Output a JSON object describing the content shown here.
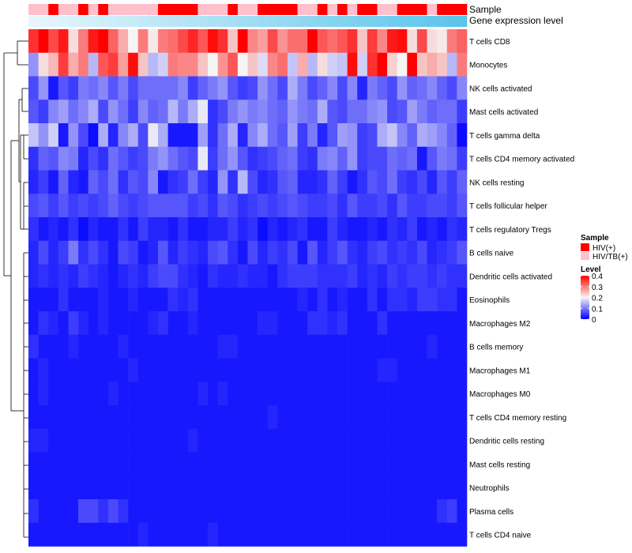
{
  "chart_data": {
    "type": "heatmap",
    "title": "",
    "annotation_tracks": [
      {
        "name": "Sample",
        "label": "Sample"
      },
      {
        "name": "Gene expression level",
        "label": "Gene expression level"
      }
    ],
    "rows": [
      "T cells CD8",
      "Monocytes",
      "NK cells activated",
      "Mast cells activated",
      "T cells gamma delta",
      "T cells CD4 memory activated",
      "NK cells resting",
      "T cells follicular helper",
      "T cells regulatory  Tregs",
      "B cells naive",
      "Dendritic cells activated",
      "Eosinophils",
      "Macrophages M2",
      "B cells memory",
      "Macrophages M1",
      "Macrophages M0",
      "T cells CD4 memory resting",
      "Dendritic cells resting",
      "Mast cells resting",
      "Neutrophils",
      "Plasma cells",
      "T cells CD4 naive"
    ],
    "n_columns": 44,
    "sample_groups": [
      1,
      1,
      0,
      1,
      1,
      0,
      1,
      0,
      1,
      1,
      1,
      1,
      1,
      0,
      0,
      0,
      0,
      1,
      1,
      1,
      0,
      1,
      1,
      0,
      0,
      0,
      0,
      1,
      1,
      0,
      1,
      0,
      1,
      0,
      0,
      1,
      1,
      0,
      0,
      0,
      1,
      0,
      0,
      0
    ],
    "expression_level": [
      0,
      0.023,
      0.047,
      0.07,
      0.093,
      0.116,
      0.14,
      0.163,
      0.186,
      0.209,
      0.233,
      0.256,
      0.279,
      0.302,
      0.326,
      0.349,
      0.372,
      0.395,
      0.419,
      0.442,
      0.465,
      0.488,
      0.512,
      0.535,
      0.558,
      0.581,
      0.605,
      0.628,
      0.651,
      0.674,
      0.698,
      0.721,
      0.744,
      0.767,
      0.791,
      0.814,
      0.837,
      0.86,
      0.884,
      0.907,
      0.93,
      0.953,
      0.977,
      1
    ],
    "values": [
      [
        0.36,
        0.4,
        0.34,
        0.38,
        0.22,
        0.3,
        0.38,
        0.4,
        0.32,
        0.26,
        0.2,
        0.3,
        0.21,
        0.3,
        0.31,
        0.34,
        0.37,
        0.33,
        0.39,
        0.36,
        0.24,
        0.4,
        0.29,
        0.27,
        0.34,
        0.28,
        0.31,
        0.31,
        0.4,
        0.33,
        0.31,
        0.33,
        0.36,
        0.24,
        0.35,
        0.29,
        0.38,
        0.39,
        0.22,
        0.34,
        0.22,
        0.21,
        0.3,
        0.32
      ],
      [
        0.12,
        0.22,
        0.25,
        0.35,
        0.26,
        0.3,
        0.15,
        0.33,
        0.35,
        0.27,
        0.39,
        0.24,
        0.15,
        0.17,
        0.3,
        0.29,
        0.29,
        0.24,
        0.2,
        0.28,
        0.33,
        0.2,
        0.24,
        0.18,
        0.29,
        0.31,
        0.16,
        0.26,
        0.15,
        0.22,
        0.17,
        0.16,
        0.39,
        0.17,
        0.36,
        0.4,
        0.23,
        0.2,
        0.4,
        0.24,
        0.26,
        0.24,
        0.15,
        0.3
      ],
      [
        0.06,
        0.12,
        0.02,
        0.07,
        0.05,
        0.1,
        0.09,
        0.11,
        0.07,
        0.1,
        0.06,
        0.09,
        0.09,
        0.09,
        0.09,
        0.11,
        0.05,
        0.08,
        0.1,
        0.12,
        0.07,
        0.05,
        0.06,
        0.12,
        0.09,
        0.06,
        0.14,
        0.1,
        0.06,
        0.08,
        0.11,
        0.06,
        0.11,
        0.03,
        0.1,
        0.08,
        0.06,
        0.12,
        0.08,
        0.09,
        0.11,
        0.08,
        0.06,
        0.11
      ],
      [
        0.07,
        0.05,
        0.11,
        0.13,
        0.09,
        0.11,
        0.14,
        0.06,
        0.12,
        0.09,
        0.05,
        0.11,
        0.08,
        0.09,
        0.15,
        0.1,
        0.14,
        0.19,
        0.04,
        0.06,
        0.1,
        0.12,
        0.1,
        0.11,
        0.09,
        0.08,
        0.12,
        0.1,
        0.09,
        0.14,
        0.07,
        0.06,
        0.09,
        0.09,
        0.11,
        0.12,
        0.06,
        0.07,
        0.13,
        0.1,
        0.08,
        0.09,
        0.09,
        0.05
      ],
      [
        0.16,
        0.12,
        0.17,
        0.02,
        0.12,
        0.06,
        0.01,
        0.14,
        0.03,
        0.11,
        0.14,
        0.06,
        0.19,
        0.14,
        0.02,
        0.02,
        0.02,
        0.13,
        0.04,
        0.09,
        0.14,
        0.03,
        0.11,
        0.14,
        0.09,
        0.07,
        0.13,
        0.05,
        0.1,
        0.03,
        0.07,
        0.13,
        0.12,
        0.05,
        0.06,
        0.14,
        0.16,
        0.11,
        0.08,
        0.14,
        0.13,
        0.11,
        0.08,
        0.01
      ],
      [
        0.04,
        0.08,
        0.07,
        0.11,
        0.1,
        0.03,
        0.06,
        0.04,
        0.09,
        0.07,
        0.05,
        0.06,
        0.1,
        0.12,
        0.09,
        0.07,
        0.06,
        0.19,
        0.05,
        0.09,
        0.12,
        0.07,
        0.04,
        0.05,
        0.06,
        0.08,
        0.09,
        0.05,
        0.04,
        0.1,
        0.11,
        0.08,
        0.12,
        0.05,
        0.06,
        0.06,
        0.09,
        0.08,
        0.09,
        0.02,
        0.07,
        0.1,
        0.09,
        0.05
      ],
      [
        0.03,
        0.05,
        0.02,
        0.08,
        0.03,
        0.02,
        0.08,
        0.06,
        0.09,
        0.04,
        0.07,
        0.06,
        0.11,
        0.02,
        0.04,
        0.05,
        0.09,
        0.05,
        0.03,
        0.12,
        0.04,
        0.15,
        0.06,
        0.03,
        0.04,
        0.07,
        0.08,
        0.03,
        0.03,
        0.04,
        0.08,
        0.05,
        0.02,
        0.04,
        0.07,
        0.06,
        0.09,
        0.05,
        0.04,
        0.06,
        0.03,
        0.07,
        0.05,
        0.08
      ],
      [
        0.06,
        0.07,
        0.05,
        0.07,
        0.05,
        0.06,
        0.05,
        0.06,
        0.08,
        0.06,
        0.05,
        0.06,
        0.07,
        0.07,
        0.07,
        0.07,
        0.05,
        0.06,
        0.04,
        0.07,
        0.06,
        0.04,
        0.05,
        0.06,
        0.05,
        0.06,
        0.07,
        0.06,
        0.05,
        0.05,
        0.06,
        0.04,
        0.07,
        0.05,
        0.05,
        0.06,
        0.04,
        0.07,
        0.05,
        0.05,
        0.06,
        0.06,
        0.05,
        0.07
      ],
      [
        0.04,
        0.02,
        0.03,
        0.02,
        0.04,
        0.01,
        0.03,
        0.02,
        0.02,
        0.04,
        0.02,
        0.05,
        0.03,
        0.03,
        0.02,
        0.04,
        0.02,
        0.02,
        0.03,
        0.03,
        0.05,
        0.03,
        0.04,
        0.01,
        0.03,
        0.02,
        0.03,
        0.04,
        0.02,
        0.02,
        0.05,
        0.03,
        0.02,
        0.02,
        0.03,
        0.02,
        0.04,
        0.03,
        0.05,
        0.02,
        0.03,
        0.02,
        0.04,
        0.03
      ],
      [
        0.03,
        0.06,
        0.03,
        0.05,
        0.1,
        0.04,
        0.06,
        0.04,
        0.02,
        0.06,
        0.05,
        0.02,
        0.03,
        0.07,
        0.03,
        0.05,
        0.04,
        0.03,
        0.06,
        0.07,
        0.04,
        0.02,
        0.06,
        0.03,
        0.05,
        0.04,
        0.06,
        0.02,
        0.07,
        0.03,
        0.05,
        0.07,
        0.04,
        0.03,
        0.05,
        0.06,
        0.04,
        0.05,
        0.04,
        0.06,
        0.03,
        0.04,
        0.05,
        0.07
      ],
      [
        0.03,
        0.04,
        0.03,
        0.04,
        0.03,
        0.05,
        0.04,
        0.03,
        0.02,
        0.03,
        0.04,
        0.03,
        0.05,
        0.06,
        0.06,
        0.04,
        0.03,
        0.02,
        0.04,
        0.03,
        0.03,
        0.04,
        0.03,
        0.03,
        0.02,
        0.04,
        0.05,
        0.05,
        0.05,
        0.04,
        0.04,
        0.04,
        0.05,
        0.03,
        0.04,
        0.03,
        0.05,
        0.04,
        0.05,
        0.05,
        0.04,
        0.05,
        0.04,
        0.04
      ],
      [
        0.02,
        0.02,
        0.02,
        0.04,
        0.02,
        0.02,
        0.02,
        0.03,
        0.02,
        0.02,
        0.03,
        0.02,
        0.02,
        0.02,
        0.04,
        0.03,
        0.04,
        0.02,
        0.02,
        0.02,
        0.02,
        0.02,
        0.02,
        0.02,
        0.02,
        0.02,
        0.02,
        0.03,
        0.02,
        0.04,
        0.02,
        0.03,
        0.02,
        0.02,
        0.04,
        0.02,
        0.04,
        0.04,
        0.03,
        0.05,
        0.05,
        0.04,
        0.04,
        0.02
      ],
      [
        0.02,
        0.04,
        0.03,
        0.02,
        0.05,
        0.03,
        0.02,
        0.03,
        0.02,
        0.02,
        0.02,
        0.02,
        0.03,
        0.04,
        0.02,
        0.02,
        0.03,
        0.02,
        0.02,
        0.02,
        0.02,
        0.02,
        0.02,
        0.03,
        0.03,
        0.02,
        0.02,
        0.02,
        0.04,
        0.04,
        0.03,
        0.04,
        0.02,
        0.02,
        0.02,
        0.04,
        0.02,
        0.02,
        0.02,
        0.02,
        0.02,
        0.02,
        0.02,
        0.02
      ],
      [
        0.04,
        0.02,
        0.02,
        0.02,
        0.03,
        0.02,
        0.02,
        0.02,
        0.02,
        0.03,
        0.02,
        0.02,
        0.02,
        0.02,
        0.02,
        0.02,
        0.02,
        0.02,
        0.02,
        0.03,
        0.03,
        0.02,
        0.02,
        0.02,
        0.02,
        0.02,
        0.02,
        0.02,
        0.02,
        0.02,
        0.02,
        0.02,
        0.02,
        0.02,
        0.02,
        0.02,
        0.02,
        0.02,
        0.02,
        0.02,
        0.03,
        0.02,
        0.02,
        0.02
      ],
      [
        0.02,
        0.03,
        0.02,
        0.02,
        0.02,
        0.02,
        0.02,
        0.02,
        0.02,
        0.02,
        0.03,
        0.02,
        0.02,
        0.02,
        0.02,
        0.02,
        0.02,
        0.02,
        0.02,
        0.02,
        0.02,
        0.02,
        0.02,
        0.02,
        0.02,
        0.02,
        0.02,
        0.02,
        0.02,
        0.02,
        0.02,
        0.02,
        0.02,
        0.02,
        0.02,
        0.03,
        0.03,
        0.02,
        0.02,
        0.02,
        0.02,
        0.02,
        0.02,
        0.02
      ],
      [
        0.02,
        0.03,
        0.02,
        0.02,
        0.02,
        0.02,
        0.02,
        0.02,
        0.03,
        0.02,
        0.02,
        0.02,
        0.02,
        0.02,
        0.02,
        0.02,
        0.02,
        0.03,
        0.02,
        0.03,
        0.02,
        0.02,
        0.02,
        0.02,
        0.02,
        0.02,
        0.02,
        0.02,
        0.02,
        0.02,
        0.02,
        0.02,
        0.02,
        0.02,
        0.02,
        0.02,
        0.02,
        0.02,
        0.02,
        0.02,
        0.02,
        0.02,
        0.02,
        0.02
      ],
      [
        0.02,
        0.02,
        0.02,
        0.02,
        0.02,
        0.02,
        0.02,
        0.02,
        0.02,
        0.02,
        0.02,
        0.02,
        0.02,
        0.02,
        0.02,
        0.02,
        0.02,
        0.02,
        0.02,
        0.02,
        0.02,
        0.02,
        0.02,
        0.02,
        0.03,
        0.02,
        0.02,
        0.02,
        0.02,
        0.02,
        0.02,
        0.02,
        0.02,
        0.02,
        0.02,
        0.02,
        0.02,
        0.02,
        0.02,
        0.02,
        0.02,
        0.02,
        0.02,
        0.02
      ],
      [
        0.03,
        0.03,
        0.02,
        0.02,
        0.02,
        0.02,
        0.02,
        0.02,
        0.02,
        0.02,
        0.02,
        0.02,
        0.02,
        0.02,
        0.02,
        0.02,
        0.03,
        0.02,
        0.02,
        0.02,
        0.02,
        0.02,
        0.02,
        0.02,
        0.02,
        0.02,
        0.02,
        0.02,
        0.02,
        0.02,
        0.02,
        0.02,
        0.02,
        0.02,
        0.02,
        0.02,
        0.02,
        0.02,
        0.02,
        0.02,
        0.02,
        0.02,
        0.02,
        0.02
      ],
      [
        0.02,
        0.02,
        0.02,
        0.02,
        0.02,
        0.02,
        0.02,
        0.02,
        0.02,
        0.02,
        0.02,
        0.02,
        0.02,
        0.02,
        0.02,
        0.02,
        0.02,
        0.02,
        0.02,
        0.02,
        0.02,
        0.02,
        0.02,
        0.02,
        0.02,
        0.02,
        0.02,
        0.02,
        0.02,
        0.02,
        0.02,
        0.02,
        0.02,
        0.02,
        0.02,
        0.02,
        0.02,
        0.02,
        0.02,
        0.02,
        0.02,
        0.02,
        0.02,
        0.02
      ],
      [
        0.02,
        0.02,
        0.02,
        0.02,
        0.02,
        0.02,
        0.02,
        0.02,
        0.02,
        0.02,
        0.02,
        0.02,
        0.02,
        0.02,
        0.02,
        0.02,
        0.02,
        0.02,
        0.02,
        0.02,
        0.02,
        0.02,
        0.02,
        0.02,
        0.02,
        0.02,
        0.02,
        0.02,
        0.02,
        0.02,
        0.02,
        0.02,
        0.02,
        0.02,
        0.02,
        0.02,
        0.02,
        0.02,
        0.02,
        0.02,
        0.02,
        0.02,
        0.02,
        0.02
      ],
      [
        0.04,
        0.02,
        0.02,
        0.02,
        0.02,
        0.06,
        0.06,
        0.04,
        0.06,
        0.04,
        0.02,
        0.02,
        0.02,
        0.02,
        0.02,
        0.02,
        0.02,
        0.02,
        0.02,
        0.02,
        0.02,
        0.02,
        0.02,
        0.02,
        0.02,
        0.02,
        0.02,
        0.02,
        0.02,
        0.02,
        0.02,
        0.02,
        0.02,
        0.02,
        0.02,
        0.02,
        0.02,
        0.02,
        0.02,
        0.02,
        0.02,
        0.04,
        0.05,
        0.02
      ],
      [
        0.02,
        0.02,
        0.02,
        0.02,
        0.02,
        0.02,
        0.02,
        0.02,
        0.02,
        0.02,
        0.02,
        0.03,
        0.02,
        0.02,
        0.02,
        0.02,
        0.02,
        0.02,
        0.03,
        0.02,
        0.02,
        0.02,
        0.02,
        0.02,
        0.02,
        0.02,
        0.02,
        0.02,
        0.02,
        0.02,
        0.02,
        0.02,
        0.02,
        0.02,
        0.02,
        0.02,
        0.02,
        0.02,
        0.02,
        0.02,
        0.02,
        0.02,
        0.02,
        0.02
      ]
    ],
    "legends": {
      "sample": {
        "title": "Sample",
        "entries": [
          {
            "label": "HIV(+)",
            "color": "#ff0000"
          },
          {
            "label": "HIV/TB(+)",
            "color": "#ffc0cb"
          }
        ]
      },
      "level": {
        "title": "Level",
        "ticks": [
          "0.4",
          "0.3",
          "0.2",
          "0.1",
          "0"
        ],
        "tick_values": [
          0.4,
          0.3,
          0.2,
          0.1,
          0
        ],
        "range": [
          0,
          0.4
        ]
      }
    },
    "colors": {
      "low": "#0000ff",
      "mid": "#f5f5f5",
      "high": "#ff0000",
      "expression_low": "#e6f6fc",
      "expression_high": "#5bc5ea"
    }
  }
}
